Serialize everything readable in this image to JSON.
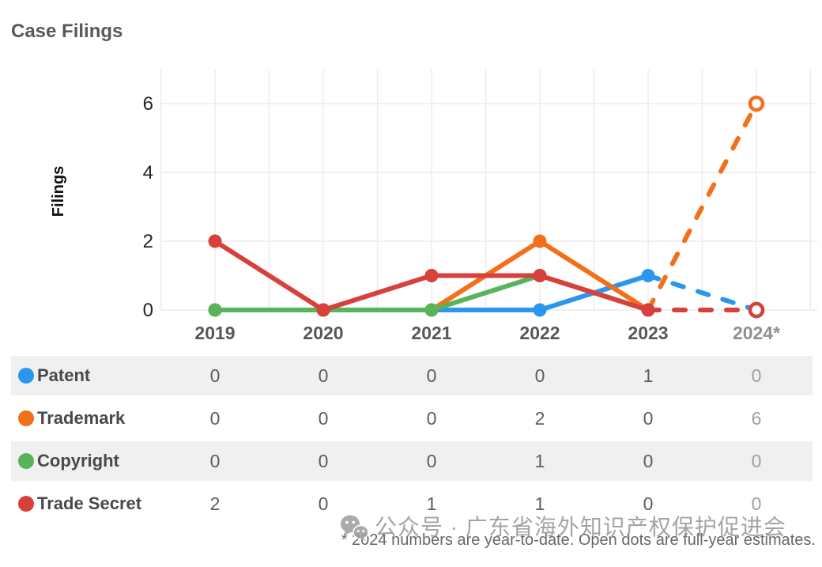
{
  "page": {
    "title": "Case Filings"
  },
  "chart_data": {
    "type": "line",
    "title": "Case Filings",
    "ylabel": "Filings",
    "xlabel": "",
    "categories": [
      "2019",
      "2020",
      "2021",
      "2022",
      "2023",
      "2024*"
    ],
    "yticks": [
      0,
      2,
      4,
      6
    ],
    "ylim": [
      0,
      7
    ],
    "grid": true,
    "legend_position": "table-below-left",
    "final_point_style": "dashed-segment-open-dot-estimate",
    "series": [
      {
        "name": "Patent",
        "color": "#2b96ef",
        "values": [
          0,
          0,
          0,
          0,
          1,
          0
        ]
      },
      {
        "name": "Trademark",
        "color": "#f3701b",
        "values": [
          0,
          0,
          0,
          2,
          0,
          6
        ]
      },
      {
        "name": "Copyright",
        "color": "#57b45b",
        "values": [
          0,
          0,
          0,
          1,
          0,
          0
        ]
      },
      {
        "name": "Trade Secret",
        "color": "#d8403c",
        "values": [
          2,
          0,
          1,
          1,
          0,
          0
        ]
      }
    ]
  },
  "table": {
    "columns": [
      "2019",
      "2020",
      "2021",
      "2022",
      "2023",
      "2024*"
    ],
    "rows": [
      {
        "label": "Patent",
        "color": "#2b96ef",
        "values": [
          "0",
          "0",
          "0",
          "0",
          "1",
          "0"
        ]
      },
      {
        "label": "Trademark",
        "color": "#f3701b",
        "values": [
          "0",
          "0",
          "0",
          "2",
          "0",
          "6"
        ]
      },
      {
        "label": "Copyright",
        "color": "#57b45b",
        "values": [
          "0",
          "0",
          "0",
          "1",
          "0",
          "0"
        ]
      },
      {
        "label": "Trade Secret",
        "color": "#d8403c",
        "values": [
          "2",
          "0",
          "1",
          "1",
          "0",
          "0"
        ]
      }
    ]
  },
  "footnote": "* 2024 numbers are year-to-date. Open dots are full-year estimates.",
  "watermark": {
    "icon": "wechat-icon",
    "text": "公众号 · 广东省海外知识产权保护促进会"
  },
  "colors": {
    "grid": "#ebebeb",
    "alt_row": "#f0f0f0",
    "axis_text": "#212326",
    "year_label": "#55575b",
    "year_label_estimate": "#8e9093"
  }
}
